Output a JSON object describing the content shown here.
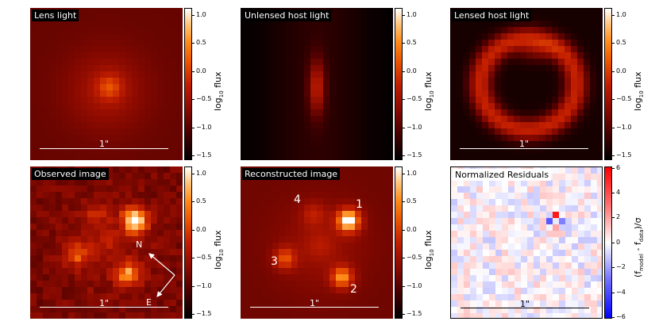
{
  "panels": [
    {
      "title": "Lens light",
      "scalebar": "1\""
    },
    {
      "title": "Unlensed host light"
    },
    {
      "title": "Lensed host light",
      "scalebar": "1\""
    },
    {
      "title": "Observed image",
      "scalebar": "1\"",
      "compass": {
        "north": "N",
        "east": "E"
      }
    },
    {
      "title": "Reconstructed image",
      "scalebar": "1\"",
      "image_labels": [
        "1",
        "2",
        "3",
        "4"
      ]
    },
    {
      "title": "Normalized Residuals",
      "scalebar": "1\""
    }
  ],
  "colorbar_flux": {
    "label_prefix": "log",
    "label_sub": "10",
    "label_suffix": " flux",
    "ticks": [
      "1.0",
      "0.5",
      "0.0",
      "−0.5",
      "−1.0",
      "−1.5"
    ],
    "colors": [
      "#000000",
      "#8c0a00",
      "#e85200",
      "#ffffff"
    ]
  },
  "colorbar_resid": {
    "label_open": "(f",
    "label_sub1": "model",
    "label_mid": " - f",
    "label_sub2": "data",
    "label_close": ")/σ",
    "ticks": [
      "6",
      "4",
      "2",
      "0",
      "−2",
      "−4",
      "−6"
    ],
    "colors": [
      "#0000ff",
      "#ffffff",
      "#ff0000"
    ]
  }
}
